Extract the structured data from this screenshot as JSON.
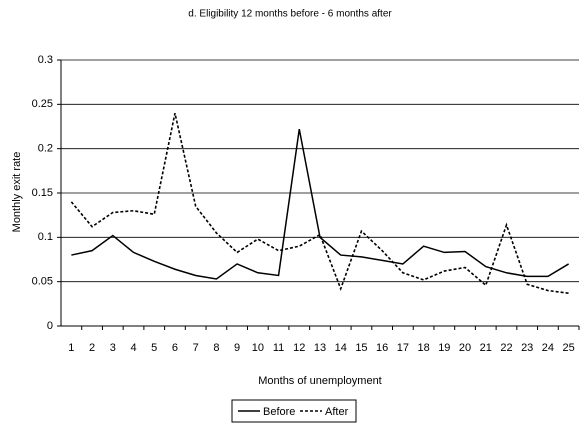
{
  "chart_data": {
    "type": "line",
    "title": "d. Eligibility 12 months before - 6 months after",
    "x_label": "Months of unemployment",
    "y_label": "Monthly exit rate",
    "categories": [
      1,
      2,
      3,
      4,
      5,
      6,
      7,
      8,
      9,
      10,
      11,
      12,
      13,
      14,
      15,
      16,
      17,
      18,
      19,
      20,
      21,
      22,
      23,
      24,
      25
    ],
    "series": [
      {
        "name": "Before",
        "color": "#000000",
        "dashed": false,
        "values": [
          0.08,
          0.085,
          0.102,
          0.083,
          0.073,
          0.064,
          0.057,
          0.053,
          0.07,
          0.06,
          0.057,
          0.222,
          0.1,
          0.08,
          0.078,
          0.074,
          0.07,
          0.09,
          0.083,
          0.084,
          0.067,
          0.06,
          0.056,
          0.056,
          0.07
        ]
      },
      {
        "name": "After",
        "color": "#000000",
        "dashed": true,
        "values": [
          0.14,
          0.112,
          0.128,
          0.13,
          0.126,
          0.24,
          0.135,
          0.105,
          0.083,
          0.098,
          0.085,
          0.09,
          0.103,
          0.042,
          0.107,
          0.085,
          0.06,
          0.052,
          0.062,
          0.066,
          0.046,
          0.114,
          0.047,
          0.04,
          0.037
        ]
      }
    ],
    "ylim": [
      0,
      0.3
    ],
    "yticks": [
      0,
      0.05,
      0.1,
      0.15,
      0.2,
      0.25,
      0.3
    ],
    "grid": true,
    "legend": "bottom"
  }
}
